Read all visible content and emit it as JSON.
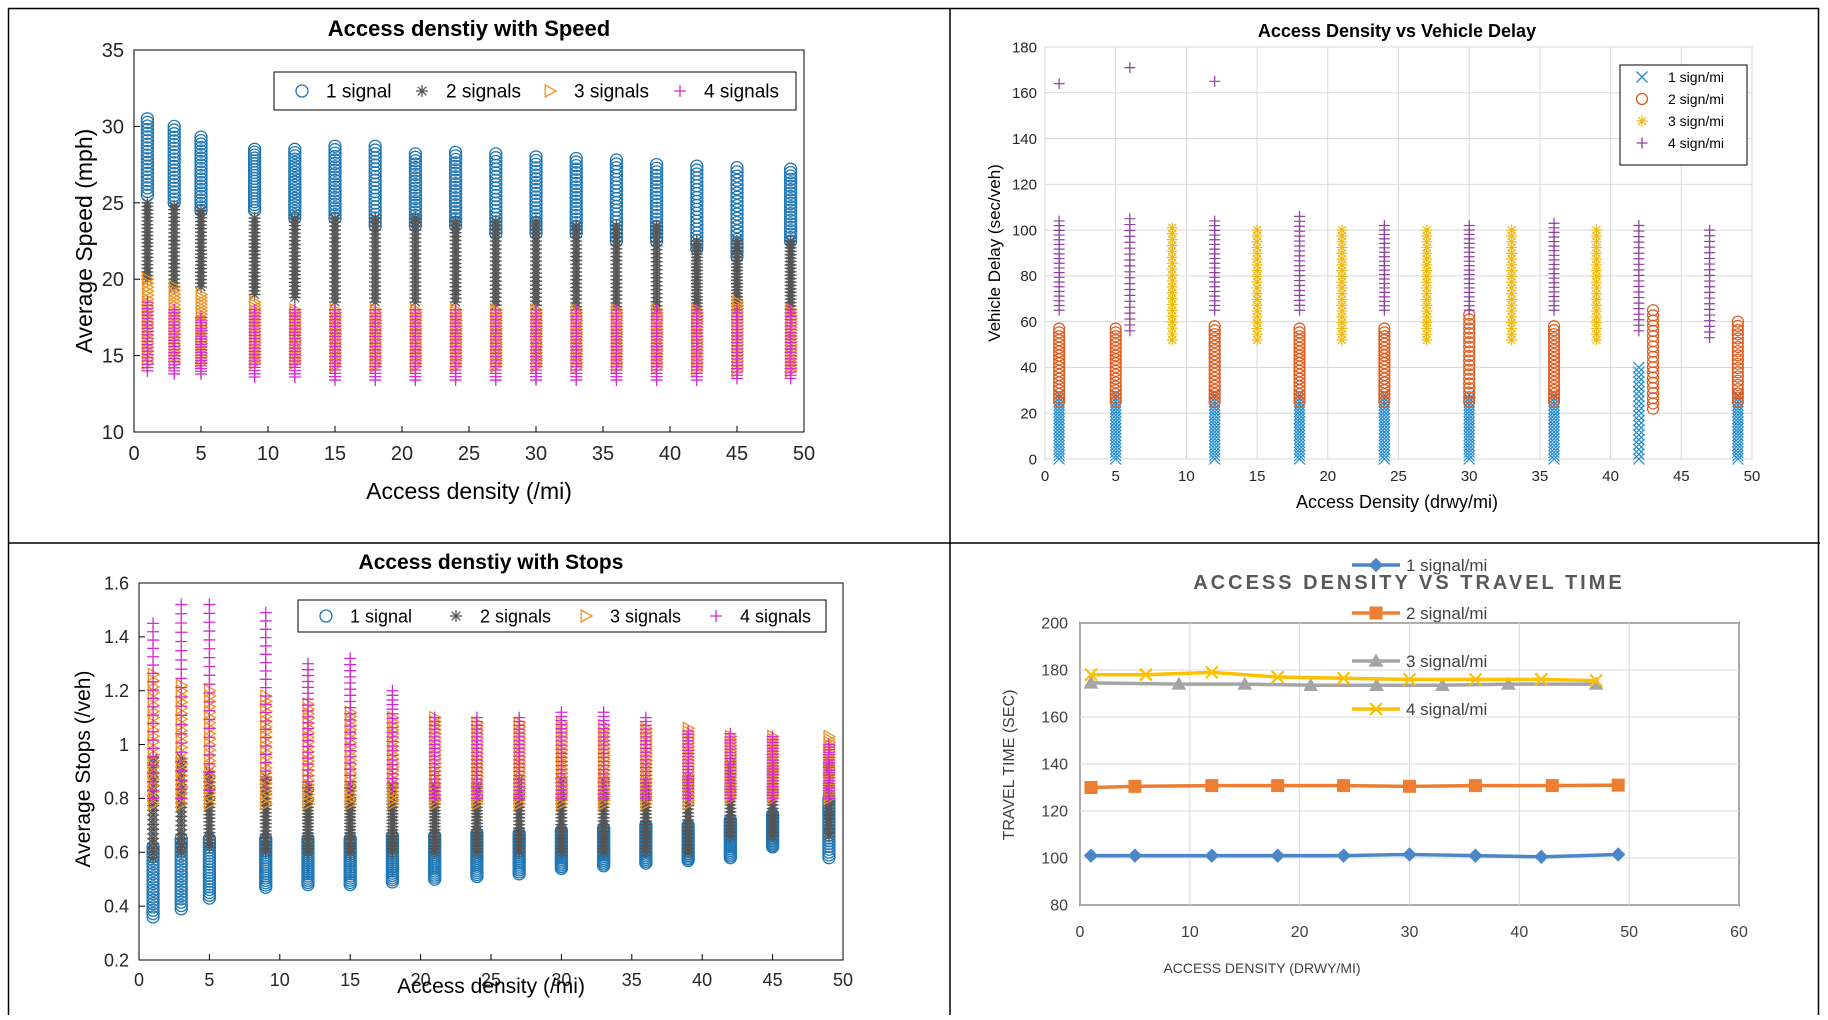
{
  "charts": [
    {
      "id": "speed",
      "title": "Access denstiy with Speed",
      "xlabel": "Access density (/mi)",
      "ylabel": "Average Speed (mph)",
      "xlim": [
        0,
        50
      ],
      "ylim": [
        10,
        35
      ],
      "xticks": [
        0,
        5,
        10,
        15,
        20,
        25,
        30,
        35,
        40,
        45,
        50
      ],
      "yticks": [
        10,
        15,
        20,
        25,
        30,
        35
      ],
      "x_positions": [
        1,
        3,
        5,
        9,
        12,
        15,
        18,
        21,
        24,
        27,
        30,
        33,
        36,
        39,
        42,
        45,
        49
      ],
      "legend_position": "top-right",
      "series": [
        {
          "name": "1 signal",
          "marker": "circle",
          "color": "#1f77b4",
          "ranges": [
            [
              25.5,
              30.5
            ],
            [
              25,
              30
            ],
            [
              24.5,
              29.3
            ],
            [
              24.5,
              28.5
            ],
            [
              24,
              28.5
            ],
            [
              24,
              28.7
            ],
            [
              23.5,
              28.7
            ],
            [
              23.5,
              28.2
            ],
            [
              23.5,
              28.3
            ],
            [
              23,
              28.2
            ],
            [
              23,
              28
            ],
            [
              23,
              27.9
            ],
            [
              22.5,
              27.8
            ],
            [
              22.5,
              27.5
            ],
            [
              22,
              27.4
            ],
            [
              21.5,
              27.3
            ],
            [
              22.5,
              27.2
            ]
          ]
        },
        {
          "name": "2 signals",
          "marker": "star",
          "color": "#555555",
          "ranges": [
            [
              20,
              25
            ],
            [
              19.5,
              24.8
            ],
            [
              19.5,
              24.5
            ],
            [
              19,
              24
            ],
            [
              18.8,
              24
            ],
            [
              18.5,
              24
            ],
            [
              18.5,
              24
            ],
            [
              18.5,
              24
            ],
            [
              18.5,
              23.8
            ],
            [
              18.3,
              23.8
            ],
            [
              18.3,
              23.8
            ],
            [
              18.2,
              23.5
            ],
            [
              18.2,
              23.5
            ],
            [
              18,
              23.5
            ],
            [
              18,
              22.5
            ],
            [
              18,
              22.5
            ],
            [
              17.8,
              22.5
            ]
          ]
        },
        {
          "name": "3 signals",
          "marker": "triangle-right",
          "color": "#f29222",
          "ranges": [
            [
              14.5,
              20
            ],
            [
              14.5,
              19.5
            ],
            [
              14.5,
              19
            ],
            [
              14.5,
              18.5
            ],
            [
              14.5,
              18
            ],
            [
              14.3,
              18
            ],
            [
              14.3,
              18
            ],
            [
              14.3,
              18
            ],
            [
              14.3,
              18
            ],
            [
              14.3,
              18
            ],
            [
              14.3,
              18
            ],
            [
              14.2,
              18
            ],
            [
              14.2,
              18
            ],
            [
              14.2,
              18
            ],
            [
              14,
              18
            ],
            [
              14,
              18.5
            ],
            [
              14,
              18
            ]
          ]
        },
        {
          "name": "4 signals",
          "marker": "plus",
          "color": "#d62ad0",
          "ranges": [
            [
              14,
              18.5
            ],
            [
              13.8,
              18
            ],
            [
              13.8,
              17.5
            ],
            [
              13.6,
              18
            ],
            [
              13.6,
              18
            ],
            [
              13.4,
              18
            ],
            [
              13.4,
              18
            ],
            [
              13.4,
              18
            ],
            [
              13.4,
              18
            ],
            [
              13.4,
              18
            ],
            [
              13.4,
              18
            ],
            [
              13.4,
              18
            ],
            [
              13.4,
              18
            ],
            [
              13.4,
              18
            ],
            [
              13.4,
              18
            ],
            [
              13.5,
              18
            ],
            [
              13.5,
              18
            ]
          ]
        }
      ]
    },
    {
      "id": "delay",
      "title": "Access Density vs Vehicle Delay",
      "xlabel": "Access Density (drwy/mi)",
      "ylabel": "Vehicle Delay (sec/veh)",
      "xlim": [
        0,
        50
      ],
      "ylim": [
        0,
        180
      ],
      "xticks": [
        0,
        5,
        10,
        15,
        20,
        25,
        30,
        35,
        40,
        45,
        50
      ],
      "yticks": [
        0,
        20,
        40,
        60,
        80,
        100,
        120,
        140,
        160,
        180
      ],
      "legend_position": "top-right",
      "series": [
        {
          "name": "1 sign/mi",
          "marker": "x",
          "color": "#1f8ad1",
          "x": [
            1,
            5,
            12,
            18,
            24,
            30,
            36,
            42,
            49
          ],
          "ranges": [
            [
              0,
              28
            ],
            [
              0,
              28
            ],
            [
              0,
              28
            ],
            [
              0,
              28
            ],
            [
              0,
              28
            ],
            [
              0,
              28
            ],
            [
              0,
              28
            ],
            [
              0,
              40
            ],
            [
              0,
              28
            ]
          ]
        },
        {
          "name": "2 sign/mi",
          "marker": "circle",
          "color": "#e25a1c",
          "x": [
            1,
            5,
            12,
            18,
            24,
            30,
            36,
            43,
            49
          ],
          "ranges": [
            [
              25,
              57
            ],
            [
              25,
              57
            ],
            [
              25,
              58
            ],
            [
              25,
              57
            ],
            [
              25,
              57
            ],
            [
              25,
              63
            ],
            [
              25,
              58
            ],
            [
              22,
              65
            ],
            [
              25,
              60
            ]
          ]
        },
        {
          "name": "3 sign/mi",
          "marker": "star",
          "color": "#f2b90f",
          "x": [
            9,
            15,
            21,
            27,
            33,
            39
          ],
          "ranges": [
            [
              52,
              101
            ],
            [
              52,
              100
            ],
            [
              52,
              100
            ],
            [
              52,
              100
            ],
            [
              52,
              100
            ],
            [
              52,
              100
            ]
          ]
        },
        {
          "name": "4 sign/mi",
          "marker": "plus",
          "color": "#8e3fa0",
          "x": [
            1,
            6,
            12,
            18,
            24,
            30,
            36,
            42,
            47
          ],
          "ranges": [
            [
              65,
              104
            ],
            [
              56,
              105
            ],
            [
              65,
              104
            ],
            [
              65,
              106
            ],
            [
              65,
              102
            ],
            [
              65,
              102
            ],
            [
              65,
              103
            ],
            [
              56,
              102
            ],
            [
              53,
              100
            ]
          ]
        }
      ],
      "outliers": [
        {
          "series": "4 sign/mi",
          "x": 1,
          "y": 164
        },
        {
          "series": "4 sign/mi",
          "x": 6,
          "y": 171
        },
        {
          "series": "4 sign/mi",
          "x": 12,
          "y": 165
        }
      ]
    },
    {
      "id": "stops",
      "title": "Access denstiy with Stops",
      "xlabel": "Access density (/mi)",
      "ylabel": "Average Stops (/veh)",
      "xlim": [
        0,
        50
      ],
      "ylim": [
        0.2,
        1.6
      ],
      "xticks": [
        0,
        5,
        10,
        15,
        20,
        25,
        30,
        35,
        40,
        45,
        50
      ],
      "yticks": [
        0.2,
        0.4,
        0.6,
        0.8,
        1,
        1.2,
        1.4,
        1.6
      ],
      "x_positions": [
        1,
        3,
        5,
        9,
        12,
        15,
        18,
        21,
        24,
        27,
        30,
        33,
        36,
        39,
        42,
        45,
        49
      ],
      "legend_position": "top-right",
      "series": [
        {
          "name": "1 signal",
          "marker": "circle",
          "color": "#1f77b4",
          "ranges": [
            [
              0.36,
              0.62
            ],
            [
              0.39,
              0.65
            ],
            [
              0.43,
              0.65
            ],
            [
              0.47,
              0.65
            ],
            [
              0.48,
              0.65
            ],
            [
              0.48,
              0.65
            ],
            [
              0.49,
              0.66
            ],
            [
              0.5,
              0.66
            ],
            [
              0.51,
              0.67
            ],
            [
              0.52,
              0.67
            ],
            [
              0.54,
              0.68
            ],
            [
              0.55,
              0.69
            ],
            [
              0.56,
              0.7
            ],
            [
              0.57,
              0.7
            ],
            [
              0.58,
              0.72
            ],
            [
              0.62,
              0.74
            ],
            [
              0.58,
              0.8
            ]
          ]
        },
        {
          "name": "2 signals",
          "marker": "star",
          "color": "#555555",
          "ranges": [
            [
              0.58,
              0.95
            ],
            [
              0.6,
              0.95
            ],
            [
              0.62,
              0.9
            ],
            [
              0.6,
              0.88
            ],
            [
              0.6,
              0.85
            ],
            [
              0.6,
              0.85
            ],
            [
              0.6,
              0.85
            ],
            [
              0.6,
              0.85
            ],
            [
              0.6,
              0.85
            ],
            [
              0.6,
              0.87
            ],
            [
              0.6,
              0.87
            ],
            [
              0.6,
              0.87
            ],
            [
              0.6,
              0.87
            ],
            [
              0.6,
              0.88
            ],
            [
              0.66,
              0.93
            ],
            [
              0.66,
              0.93
            ],
            [
              0.66,
              0.93
            ]
          ]
        },
        {
          "name": "3 signals",
          "marker": "triangle-right",
          "color": "#f29222",
          "ranges": [
            [
              0.78,
              1.26
            ],
            [
              0.78,
              1.22
            ],
            [
              0.78,
              1.2
            ],
            [
              0.78,
              1.18
            ],
            [
              0.78,
              1.15
            ],
            [
              0.78,
              1.12
            ],
            [
              0.78,
              1.1
            ],
            [
              0.78,
              1.1
            ],
            [
              0.78,
              1.08
            ],
            [
              0.78,
              1.08
            ],
            [
              0.78,
              1.08
            ],
            [
              0.78,
              1.07
            ],
            [
              0.78,
              1.06
            ],
            [
              0.78,
              1.06
            ],
            [
              0.8,
              1.03
            ],
            [
              0.8,
              1.03
            ],
            [
              0.8,
              1.03
            ]
          ]
        },
        {
          "name": "4 signals",
          "marker": "plus",
          "color": "#d62ad0",
          "ranges": [
            [
              0.8,
              1.45
            ],
            [
              0.8,
              1.52
            ],
            [
              0.83,
              1.52
            ],
            [
              0.84,
              1.49
            ],
            [
              0.84,
              1.3
            ],
            [
              0.84,
              1.32
            ],
            [
              0.84,
              1.2
            ],
            [
              0.8,
              1.1
            ],
            [
              0.8,
              1.1
            ],
            [
              0.8,
              1.1
            ],
            [
              0.8,
              1.12
            ],
            [
              0.8,
              1.12
            ],
            [
              0.8,
              1.1
            ],
            [
              0.8,
              1.05
            ],
            [
              0.8,
              1.04
            ],
            [
              0.8,
              1.03
            ],
            [
              0.8,
              1.0
            ]
          ]
        }
      ]
    },
    {
      "id": "travel",
      "title": "ACCESS DENSITY VS TRAVEL TIME",
      "xlabel": "ACCESS DENSITY (DRWY/MI)",
      "ylabel": "TRAVEL TIME (SEC)",
      "xlim": [
        0,
        60
      ],
      "ylim": [
        80,
        200
      ],
      "xticks": [
        0,
        10,
        20,
        30,
        40,
        50,
        60
      ],
      "yticks": [
        80,
        100,
        120,
        140,
        160,
        180,
        200
      ],
      "legend_position": "right",
      "series": [
        {
          "name": "1 signal/mi",
          "marker": "diamond",
          "color": "#4a86c8",
          "x": [
            1,
            5,
            12,
            18,
            24,
            30,
            36,
            42,
            49
          ],
          "values": [
            101,
            101,
            101,
            101,
            101,
            101.5,
            101,
            100.5,
            101.5
          ]
        },
        {
          "name": "2 signal/mi",
          "marker": "square",
          "color": "#ed7d31",
          "x": [
            1,
            5,
            12,
            18,
            24,
            30,
            36,
            43,
            49
          ],
          "values": [
            130,
            130.5,
            130.8,
            130.8,
            130.8,
            130.5,
            130.8,
            130.8,
            131
          ]
        },
        {
          "name": "3 signal/mi",
          "marker": "triangle",
          "color": "#a5a5a5",
          "x": [
            1,
            9,
            15,
            21,
            27,
            33,
            39,
            47
          ],
          "values": [
            174.5,
            174,
            174,
            173.5,
            173.5,
            173.5,
            174,
            174
          ]
        },
        {
          "name": "4 signal/mi",
          "marker": "x",
          "color": "#ffc000",
          "x": [
            1,
            6,
            12,
            18,
            24,
            30,
            36,
            42,
            47
          ],
          "values": [
            178,
            178,
            179,
            177,
            176.5,
            176,
            176,
            176,
            175.5
          ]
        }
      ]
    }
  ]
}
